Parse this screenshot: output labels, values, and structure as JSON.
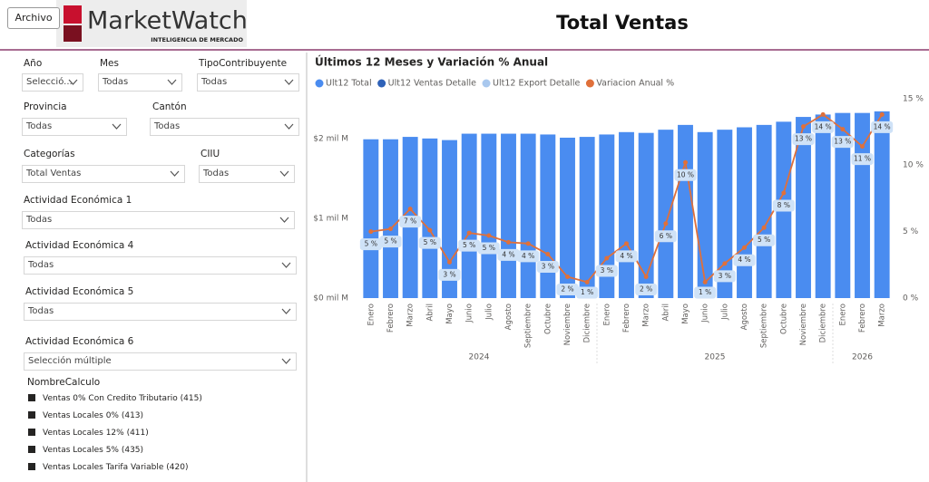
{
  "header": {
    "button": "Archivo",
    "logo": {
      "name": "MarketWatch",
      "tagline": "INTELIGENCIA DE MERCADO"
    },
    "title": "Total Ventas"
  },
  "filters": [
    {
      "label": "Año",
      "value": "Selecció..."
    },
    {
      "label": "Mes",
      "value": "Todas"
    },
    {
      "label": "TipoContribuyente",
      "value": "Todas"
    },
    {
      "label": "Provincia",
      "value": "Todas"
    },
    {
      "label": "Cantón",
      "value": "Todas"
    },
    {
      "label": "Categorías",
      "value": "Total Ventas"
    },
    {
      "label": "CIIU",
      "value": "Todas"
    },
    {
      "label": "Actividad Económica 1",
      "value": "Todas"
    },
    {
      "label": "Actividad Económica 4",
      "value": "Todas"
    },
    {
      "label": "Actividad Económica 5",
      "value": "Todas"
    },
    {
      "label": "Actividad Económica 6",
      "value": "Selección múltiple"
    }
  ],
  "checklist": {
    "title": "NombreCalculo",
    "items": [
      "Ventas 0% Con Credito Tributario (415)",
      "Ventas Locales 0% (413)",
      "Ventas Locales 12% (411)",
      "Ventas Locales 5% (435)",
      "Ventas Locales Tarifa Variable (420)"
    ]
  },
  "chart_data": {
    "type": "combo",
    "title": "Últimos 12 Meses y Variación % Anual",
    "groups": [
      {
        "label": "2024",
        "months": [
          "Enero",
          "Febrero",
          "Marzo",
          "Abril",
          "Mayo",
          "Junio",
          "Julio",
          "Agosto",
          "Septiembre",
          "Octubre",
          "Noviembre",
          "Diciembre"
        ]
      },
      {
        "label": "2025",
        "months": [
          "Enero",
          "Febrero",
          "Marzo",
          "Abril",
          "Mayo",
          "Junio",
          "Julio",
          "Agosto",
          "Septiembre",
          "Octubre",
          "Noviembre",
          "Diciembre"
        ]
      },
      {
        "label": "2026",
        "months": [
          "Enero",
          "Febrero",
          "Marzo"
        ]
      }
    ],
    "series": [
      {
        "name": "Ult12 Total",
        "color": "#4a8cf0",
        "type": "bar",
        "values": [
          1.99,
          1.99,
          2.02,
          2.0,
          1.98,
          2.06,
          2.06,
          2.06,
          2.06,
          2.05,
          2.01,
          2.02,
          2.05,
          2.08,
          2.07,
          2.11,
          2.17,
          2.08,
          2.11,
          2.14,
          2.17,
          2.21,
          2.27,
          2.3,
          2.32,
          2.32,
          2.34
        ]
      },
      {
        "name": "Ult12 Ventas Detalle",
        "color": "#2f62b8"
      },
      {
        "name": "Ult12 Export Detalle",
        "color": "#a9c8ee"
      },
      {
        "name": "Variacion Anual %",
        "color": "#e0703a",
        "type": "line",
        "axis": "y2",
        "values": [
          5.0,
          5.2,
          6.7,
          5.1,
          2.7,
          4.9,
          4.7,
          4.2,
          4.1,
          3.3,
          1.6,
          1.2,
          3.0,
          4.1,
          1.6,
          5.6,
          10.2,
          1.2,
          2.6,
          3.8,
          5.3,
          7.9,
          12.9,
          13.8,
          12.7,
          11.4,
          13.8
        ],
        "value_labels": [
          "5 %",
          "5 %",
          "7 %",
          "5 %",
          "3 %",
          "5 %",
          "5 %",
          "4 %",
          "4 %",
          "3 %",
          "2 %",
          "1 %",
          "3 %",
          "4 %",
          "2 %",
          "6 %",
          "10 %",
          "1 %",
          "3 %",
          "4 %",
          "5 %",
          "8 %",
          "13 %",
          "14 %",
          "13 %",
          "11 %",
          "14 %"
        ]
      }
    ],
    "ylim": [
      0,
      2.6
    ],
    "yticks": [
      {
        "value": 0,
        "label": "$0 mil M"
      },
      {
        "value": 1,
        "label": "$1 mil M"
      },
      {
        "value": 2,
        "label": "$2 mil M"
      }
    ],
    "y2lim": [
      0,
      15.6
    ],
    "y2ticks": [
      {
        "value": 0,
        "label": "0 %"
      },
      {
        "value": 5,
        "label": "5 %"
      },
      {
        "value": 10,
        "label": "10 %"
      },
      {
        "value": 15,
        "label": "15 %"
      }
    ],
    "grid": false
  }
}
